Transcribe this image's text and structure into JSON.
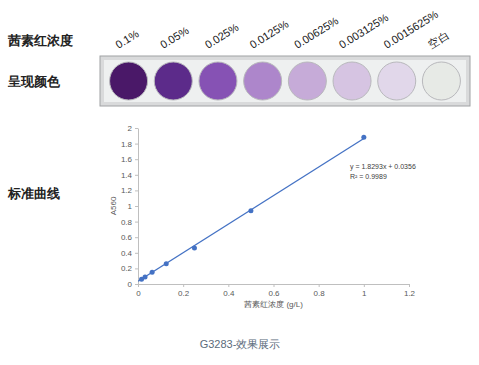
{
  "chart_data": {
    "type": "scatter",
    "x_label": "茜素红浓度 (g/L)",
    "y_label": "A560",
    "annotations": [
      "y = 1.8293x + 0.0356",
      "R² = 0.9989"
    ],
    "series": [
      {
        "type": "scatter",
        "marker": "circle",
        "color": "#4472c4",
        "x": [
          0.015625,
          0.03125,
          0.0625,
          0.125,
          0.25,
          0.5,
          1
        ],
        "values": [
          0.06,
          0.09,
          0.15,
          0.26,
          0.46,
          0.94,
          1.88
        ]
      },
      {
        "type": "line",
        "line_style": "solid",
        "color": "#4472c4",
        "x": [
          0,
          1
        ],
        "values": [
          0.036,
          1.865
        ]
      }
    ],
    "xlim": [
      0,
      1.2
    ],
    "xticks": [
      0,
      0.2,
      0.4,
      0.6,
      0.8,
      1,
      1.2
    ],
    "ylim": [
      0,
      2
    ],
    "yticks": [
      0,
      0.2,
      0.4,
      0.6,
      0.8,
      1,
      1.2,
      1.4,
      1.6,
      1.8,
      2
    ],
    "grid": false
  },
  "panel": {
    "row_label": "茜素红浓度",
    "color_label": "呈现颜色",
    "curve_label": "标准曲线",
    "labels": [
      "0.1%",
      "0.05%",
      "0.025%",
      "0.0125%",
      "0.00625%",
      "0.003125%",
      "0.0015625%",
      "空白"
    ],
    "well_colors": [
      "#4a1868",
      "#5c2b8a",
      "#8652b4",
      "#ad86cb",
      "#c6abd8",
      "#d6c4e2",
      "#e1d7ea",
      "#e7eae6"
    ],
    "caption": "G3283-效果展示"
  }
}
